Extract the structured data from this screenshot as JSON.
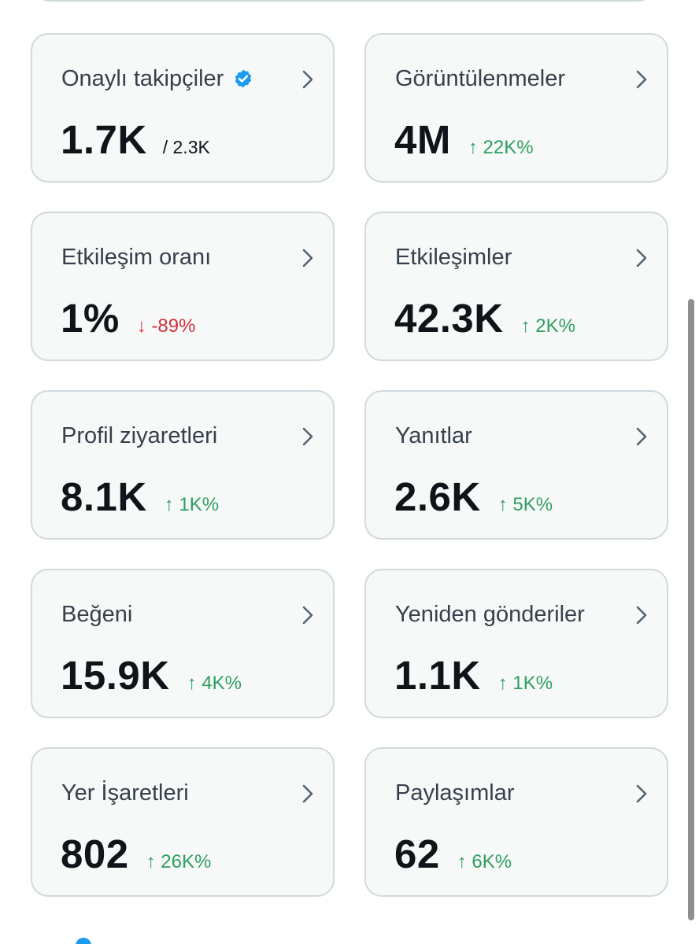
{
  "cards": [
    {
      "id": "verified-followers",
      "label": "Onaylı takipçiler",
      "value": "1.7K",
      "total": "/ 2.3K",
      "delta": "",
      "direction": "",
      "icon": "verified-badge-icon"
    },
    {
      "id": "impressions",
      "label": "Görüntülenmeler",
      "value": "4M",
      "total": "",
      "delta": "↑ 22K%",
      "direction": "up"
    },
    {
      "id": "engagement-rate",
      "label": "Etkileşim oranı",
      "value": "1%",
      "total": "",
      "delta": "↓ -89%",
      "direction": "down"
    },
    {
      "id": "engagements",
      "label": "Etkileşimler",
      "value": "42.3K",
      "total": "",
      "delta": "↑ 2K%",
      "direction": "up"
    },
    {
      "id": "profile-visits",
      "label": "Profil ziyaretleri",
      "value": "8.1K",
      "total": "",
      "delta": "↑ 1K%",
      "direction": "up"
    },
    {
      "id": "replies",
      "label": "Yanıtlar",
      "value": "2.6K",
      "total": "",
      "delta": "↑ 5K%",
      "direction": "up"
    },
    {
      "id": "likes",
      "label": "Beğeni",
      "value": "15.9K",
      "total": "",
      "delta": "↑ 4K%",
      "direction": "up"
    },
    {
      "id": "reposts",
      "label": "Yeniden gönderiler",
      "value": "1.1K",
      "total": "",
      "delta": "↑ 1K%",
      "direction": "up"
    },
    {
      "id": "bookmarks",
      "label": "Yer İşaretleri",
      "value": "802",
      "total": "",
      "delta": "↑ 26K%",
      "direction": "up"
    },
    {
      "id": "shares",
      "label": "Paylaşımlar",
      "value": "62",
      "total": "",
      "delta": "↑ 6K%",
      "direction": "up"
    }
  ],
  "colors": {
    "up": "#2f9e61",
    "down": "#d0313b",
    "verified": "#1d9bf0",
    "card_bg": "#f7f9f9",
    "card_border": "#cfd9de"
  },
  "icons": {
    "chevron": "chevron-right-icon",
    "verified": "verified-badge-icon"
  }
}
